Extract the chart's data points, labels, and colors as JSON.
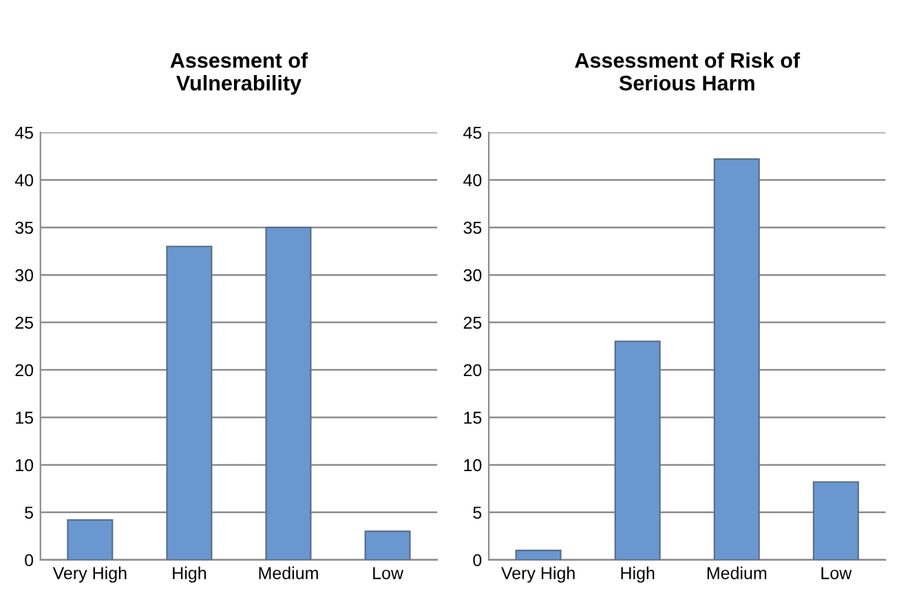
{
  "chart_data": [
    {
      "type": "bar",
      "title": "Assesment of\nVulnerability",
      "categories": [
        "Very High",
        "High",
        "Medium",
        "Low"
      ],
      "values": [
        4.2,
        33,
        35,
        3
      ],
      "color": "#6a97cf",
      "ylim": [
        0,
        45
      ],
      "yticks": [
        0,
        5,
        10,
        15,
        20,
        25,
        30,
        35,
        40,
        45
      ],
      "grid": "y",
      "legend": false
    },
    {
      "type": "bar",
      "title": "Assessment of Risk of\nSerious Harm",
      "categories": [
        "Very High",
        "High",
        "Medium",
        "Low"
      ],
      "values": [
        1,
        23,
        42.2,
        8.2
      ],
      "color": "#6a97cf",
      "ylim": [
        0,
        45
      ],
      "yticks": [
        0,
        5,
        10,
        15,
        20,
        25,
        30,
        35,
        40,
        45
      ],
      "grid": "y",
      "legend": false
    }
  ]
}
